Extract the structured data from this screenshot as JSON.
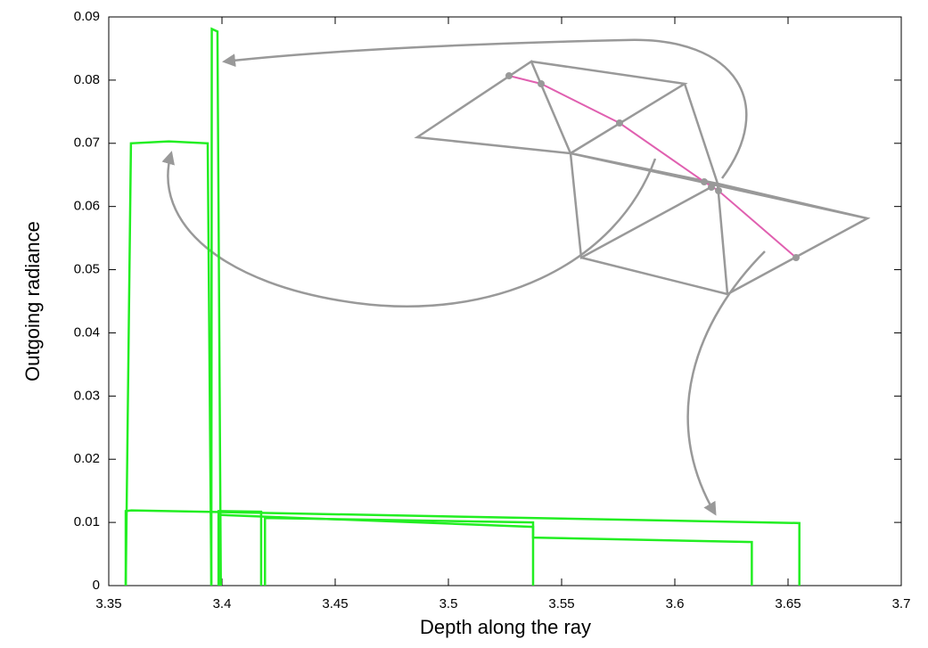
{
  "chart_data": {
    "type": "line",
    "x_label": "Depth along the ray",
    "y_label": "Outgoing radiance",
    "xlim": [
      3.35,
      3.7
    ],
    "xticks": [
      3.35,
      3.4,
      3.45,
      3.5,
      3.55,
      3.6,
      3.65,
      3.7
    ],
    "ylim": [
      0,
      0.09
    ],
    "yticks": [
      0,
      0.01,
      0.02,
      0.03,
      0.04,
      0.05,
      0.06,
      0.07,
      0.08,
      0.09
    ],
    "series": [
      {
        "color": "#22ee22",
        "x": [
          3.3575,
          3.3598,
          3.3765,
          3.3937,
          3.3953
        ],
        "values": [
          0,
          0.07,
          0.0703,
          0.07,
          0
        ]
      },
      {
        "color": "#22ee22",
        "x": [
          3.3953,
          3.3955,
          3.398,
          3.3995
        ],
        "values": [
          0,
          0.0881,
          0.0877,
          0
        ]
      },
      {
        "color": "#22ee22",
        "x": [
          3.3575,
          3.3575,
          3.36,
          3.655,
          3.655
        ],
        "values": [
          0,
          0.0118,
          0.0119,
          0.0099,
          0
        ]
      },
      {
        "color": "#22ee22",
        "x": [
          3.3985,
          3.3985,
          3.4173,
          3.4173
        ],
        "values": [
          0,
          0.0118,
          0.0117,
          0
        ]
      },
      {
        "color": "#22ee22",
        "x": [
          3.3985,
          3.3985,
          3.5374,
          3.5374
        ],
        "values": [
          0,
          0.0112,
          0.0093,
          0
        ]
      },
      {
        "color": "#22ee22",
        "x": [
          3.419,
          3.419,
          3.5374,
          3.5374,
          3.634,
          3.634
        ],
        "values": [
          0,
          0.0107,
          0.01,
          0.0076,
          0.0069,
          0
        ]
      }
    ]
  }
}
